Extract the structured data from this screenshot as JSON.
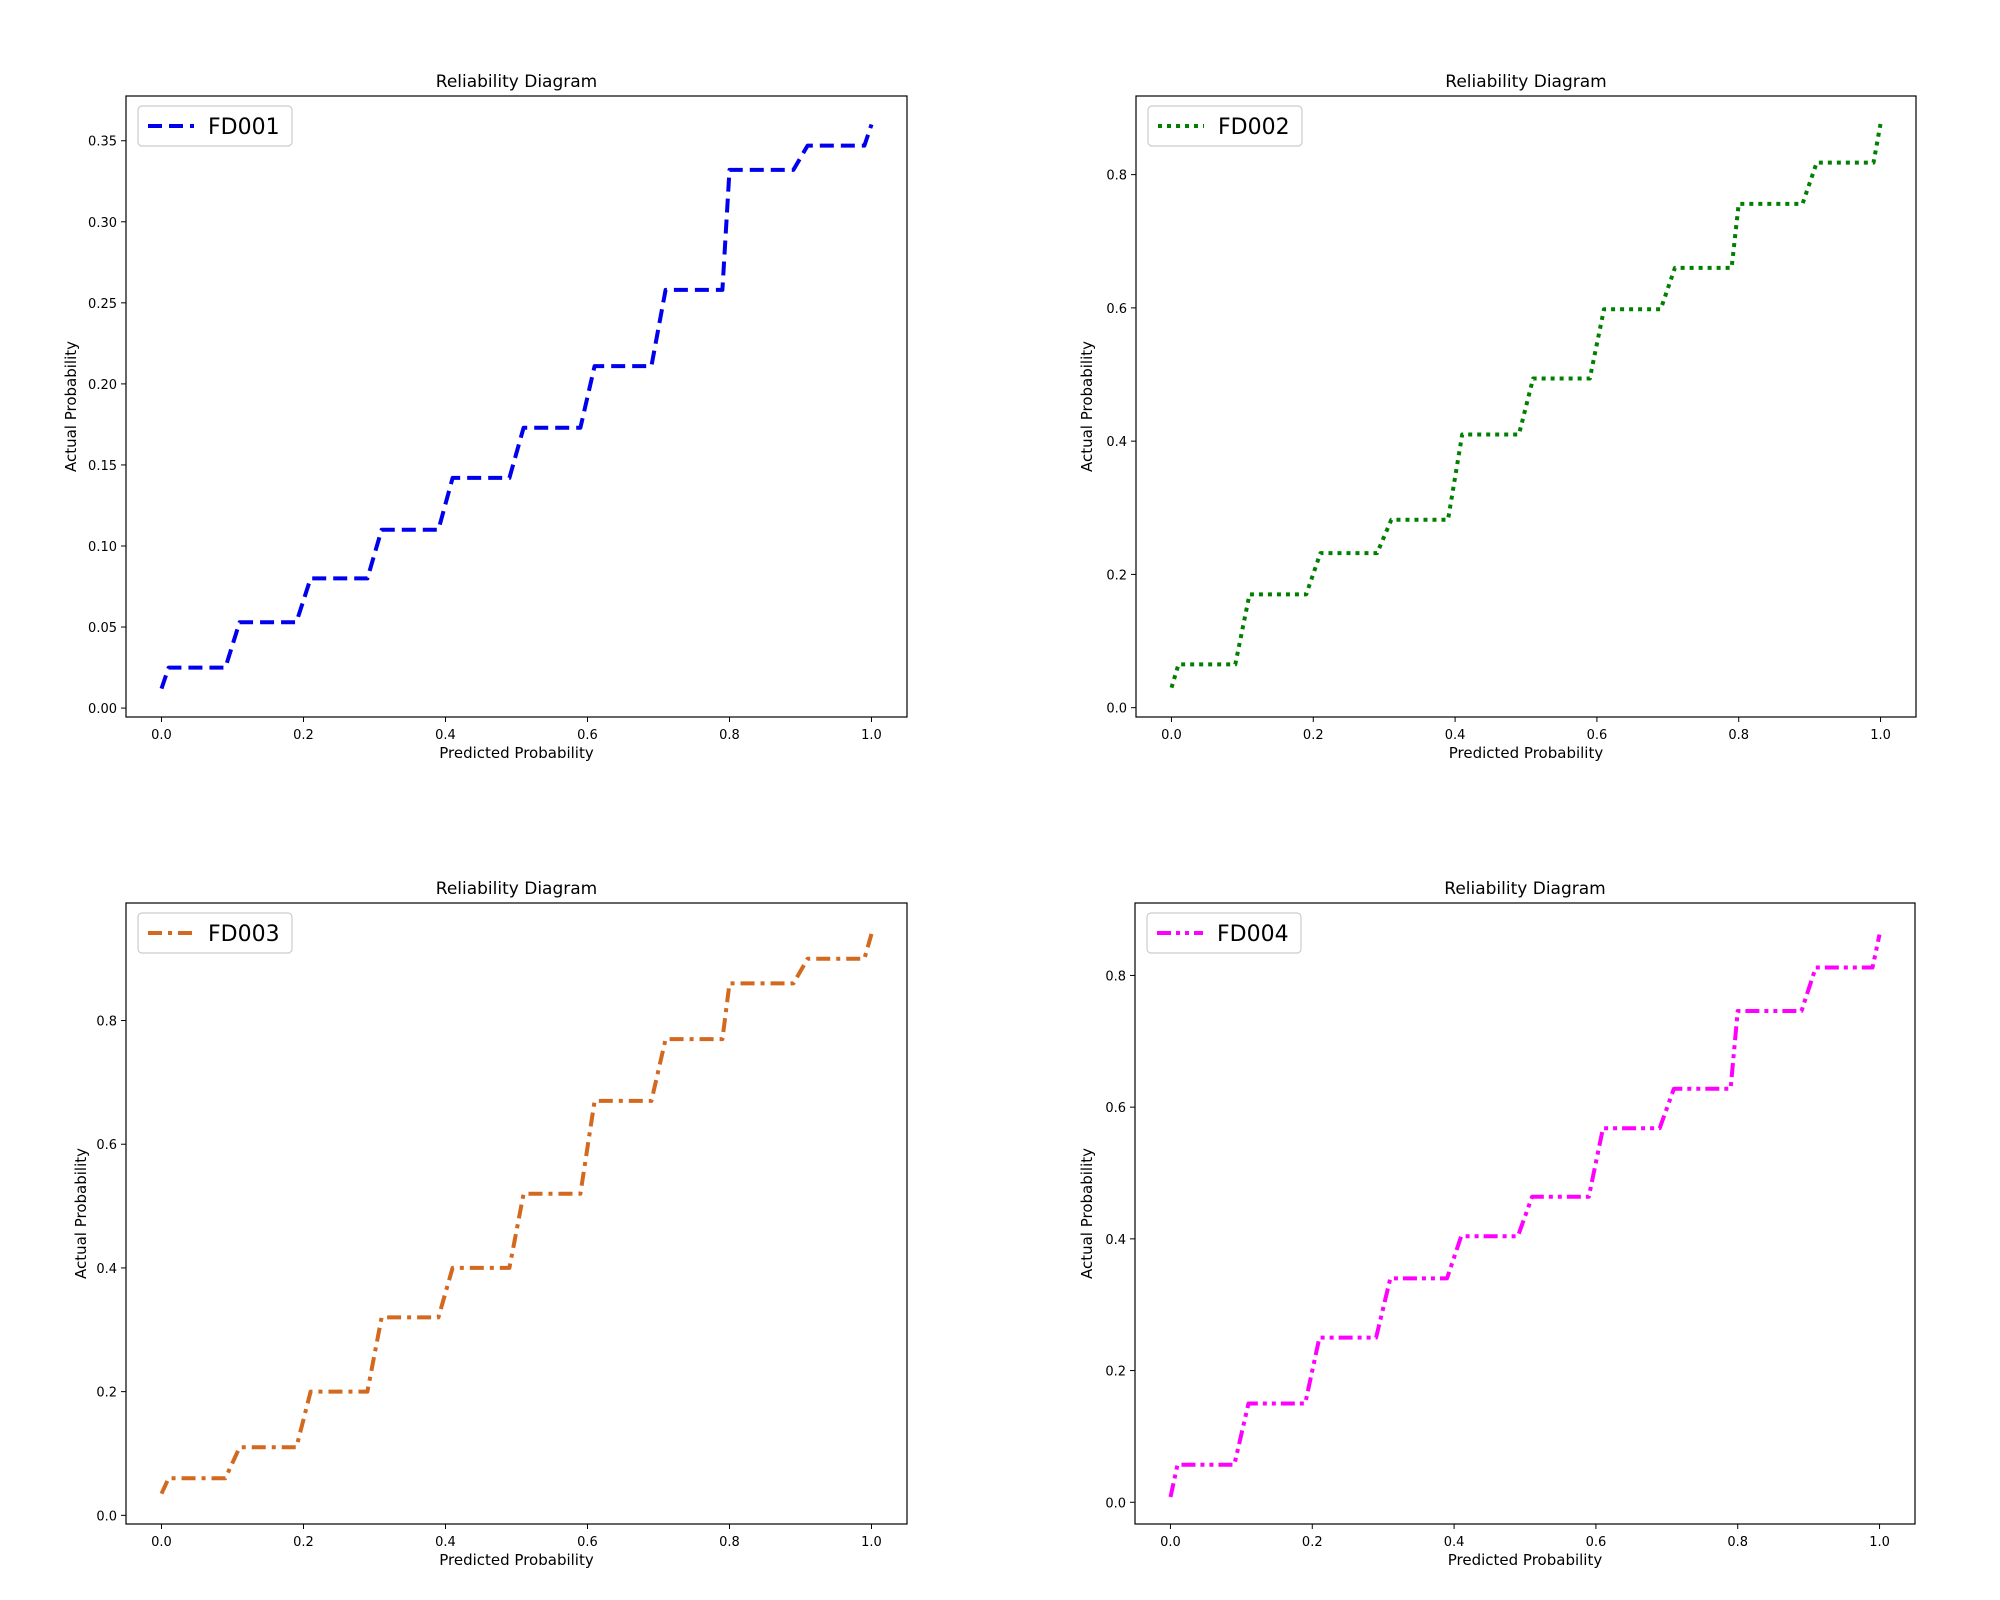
{
  "chart_data": [
    {
      "type": "line",
      "title": "Reliability Diagram",
      "xlabel": "Predicted Probability",
      "ylabel": "Actual Probability",
      "xlim": [
        -0.05,
        1.05
      ],
      "ylim": [
        -0.0055,
        0.3776
      ],
      "xticks": [
        "0.0",
        "0.2",
        "0.4",
        "0.6",
        "0.8",
        "1.0"
      ],
      "yticks": [
        "0.00",
        "0.05",
        "0.10",
        "0.15",
        "0.20",
        "0.25",
        "0.30",
        "0.35"
      ],
      "legend_position": "upper left",
      "series": [
        {
          "name": "FD001",
          "color": "#0000ee",
          "line_style": "dashed",
          "x": [
            0.0,
            0.01,
            0.09,
            0.11,
            0.19,
            0.21,
            0.29,
            0.31,
            0.39,
            0.41,
            0.49,
            0.51,
            0.59,
            0.61,
            0.69,
            0.71,
            0.79,
            0.8,
            0.89,
            0.91,
            0.99,
            1.0
          ],
          "y": [
            0.012,
            0.025,
            0.025,
            0.053,
            0.053,
            0.08,
            0.08,
            0.11,
            0.11,
            0.142,
            0.142,
            0.173,
            0.173,
            0.211,
            0.211,
            0.258,
            0.258,
            0.332,
            0.332,
            0.347,
            0.347,
            0.36
          ]
        }
      ]
    },
    {
      "type": "line",
      "title": "Reliability Diagram",
      "xlabel": "Predicted Probability",
      "ylabel": "Actual Probability",
      "xlim": [
        -0.05,
        1.05
      ],
      "ylim": [
        -0.014,
        0.918
      ],
      "xticks": [
        "0.0",
        "0.2",
        "0.4",
        "0.6",
        "0.8",
        "1.0"
      ],
      "yticks": [
        "0.0",
        "0.2",
        "0.4",
        "0.6",
        "0.8"
      ],
      "legend_position": "upper left",
      "series": [
        {
          "name": "FD002",
          "color": "#008000",
          "line_style": "dotted",
          "x": [
            0.0,
            0.01,
            0.09,
            0.11,
            0.19,
            0.21,
            0.29,
            0.31,
            0.39,
            0.41,
            0.49,
            0.51,
            0.59,
            0.61,
            0.69,
            0.71,
            0.79,
            0.8,
            0.89,
            0.91,
            0.99,
            1.0
          ],
          "y": [
            0.03,
            0.065,
            0.065,
            0.17,
            0.17,
            0.232,
            0.232,
            0.282,
            0.282,
            0.41,
            0.41,
            0.494,
            0.494,
            0.598,
            0.598,
            0.66,
            0.66,
            0.756,
            0.756,
            0.818,
            0.818,
            0.876
          ]
        }
      ]
    },
    {
      "type": "line",
      "title": "Reliability Diagram",
      "xlabel": "Predicted Probability",
      "ylabel": "Actual Probability",
      "xlim": [
        -0.05,
        1.05
      ],
      "ylim": [
        -0.014,
        0.99
      ],
      "xticks": [
        "0.0",
        "0.2",
        "0.4",
        "0.6",
        "0.8",
        "1.0"
      ],
      "yticks": [
        "0.0",
        "0.2",
        "0.4",
        "0.6",
        "0.8"
      ],
      "legend_position": "upper left",
      "series": [
        {
          "name": "FD003",
          "color": "#d2691e",
          "line_style": "dashdot",
          "x": [
            0.0,
            0.01,
            0.09,
            0.11,
            0.19,
            0.21,
            0.29,
            0.31,
            0.39,
            0.41,
            0.49,
            0.51,
            0.59,
            0.61,
            0.69,
            0.71,
            0.79,
            0.8,
            0.89,
            0.91,
            0.99,
            1.0
          ],
          "y": [
            0.035,
            0.06,
            0.06,
            0.11,
            0.11,
            0.2,
            0.2,
            0.32,
            0.32,
            0.4,
            0.4,
            0.52,
            0.52,
            0.67,
            0.67,
            0.77,
            0.77,
            0.86,
            0.86,
            0.9,
            0.9,
            0.94
          ]
        }
      ]
    },
    {
      "type": "line",
      "title": "Reliability Diagram",
      "xlabel": "Predicted Probability",
      "ylabel": "Actual Probability",
      "xlim": [
        -0.05,
        1.05
      ],
      "ylim": [
        -0.033,
        0.91
      ],
      "xticks": [
        "0.0",
        "0.2",
        "0.4",
        "0.6",
        "0.8",
        "1.0"
      ],
      "yticks": [
        "0.0",
        "0.2",
        "0.4",
        "0.6",
        "0.8"
      ],
      "legend_position": "upper left",
      "series": [
        {
          "name": "FD004",
          "color": "#ff00ff",
          "line_style": "dashdotdot",
          "x": [
            0.0,
            0.01,
            0.09,
            0.11,
            0.19,
            0.21,
            0.29,
            0.31,
            0.39,
            0.41,
            0.49,
            0.51,
            0.59,
            0.61,
            0.69,
            0.71,
            0.79,
            0.8,
            0.89,
            0.91,
            0.99,
            1.0
          ],
          "y": [
            0.008,
            0.057,
            0.057,
            0.15,
            0.15,
            0.25,
            0.25,
            0.34,
            0.34,
            0.404,
            0.404,
            0.464,
            0.464,
            0.568,
            0.568,
            0.628,
            0.628,
            0.746,
            0.746,
            0.812,
            0.812,
            0.862
          ]
        }
      ]
    }
  ]
}
